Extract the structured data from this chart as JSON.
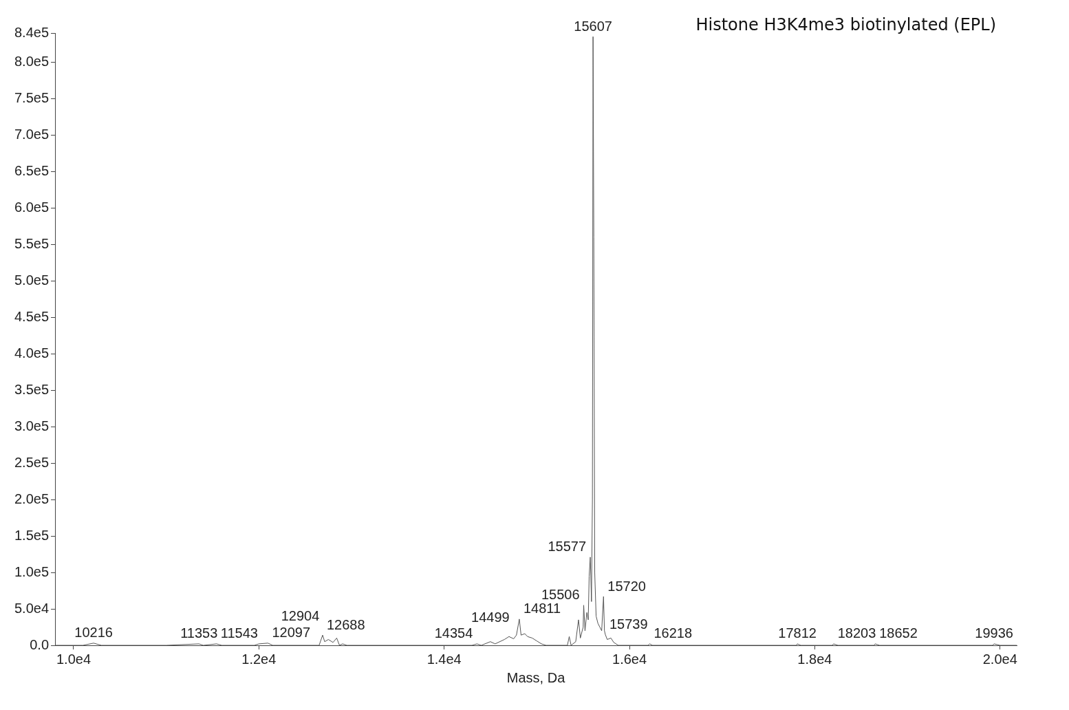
{
  "chart_data": {
    "type": "line",
    "title": "Histone H3K4me3 biotinylated (EPL)",
    "xlabel": "Mass, Da",
    "xlim": [
      9800,
      20180
    ],
    "ylim": [
      0,
      840000
    ],
    "xticks": [
      {
        "value": 10000,
        "label": "1.0e4"
      },
      {
        "value": 12000,
        "label": "1.2e4"
      },
      {
        "value": 14000,
        "label": "1.4e4"
      },
      {
        "value": 16000,
        "label": "1.6e4"
      },
      {
        "value": 18000,
        "label": "1.8e4"
      },
      {
        "value": 20000,
        "label": "2.0e4"
      }
    ],
    "yticks": [
      {
        "value": 0,
        "label": "0.0"
      },
      {
        "value": 50000,
        "label": "5.0e4"
      },
      {
        "value": 100000,
        "label": "1.0e5"
      },
      {
        "value": 150000,
        "label": "1.5e5"
      },
      {
        "value": 200000,
        "label": "2.0e5"
      },
      {
        "value": 250000,
        "label": "2.5e5"
      },
      {
        "value": 300000,
        "label": "3.0e5"
      },
      {
        "value": 350000,
        "label": "3.5e5"
      },
      {
        "value": 400000,
        "label": "4.0e5"
      },
      {
        "value": 450000,
        "label": "4.5e5"
      },
      {
        "value": 500000,
        "label": "5.0e5"
      },
      {
        "value": 550000,
        "label": "5.5e5"
      },
      {
        "value": 600000,
        "label": "6.0e5"
      },
      {
        "value": 650000,
        "label": "6.5e5"
      },
      {
        "value": 700000,
        "label": "7.0e5"
      },
      {
        "value": 750000,
        "label": "7.5e5"
      },
      {
        "value": 800000,
        "label": "8.0e5"
      },
      {
        "value": 840000,
        "label": "8.4e5"
      }
    ],
    "grid": false,
    "legend": false,
    "marker": "none",
    "line_style": "solid",
    "series": [
      {
        "color": "#555555",
        "x": [
          9800,
          10100,
          10216,
          10300,
          11000,
          11353,
          11400,
          11543,
          11600,
          11950,
          12000,
          12097,
          12150,
          12650,
          12688,
          12710,
          12750,
          12800,
          12840,
          12870,
          12904,
          12950,
          14300,
          14354,
          14400,
          14499,
          14550,
          14650,
          14700,
          14750,
          14780,
          14811,
          14830,
          14870,
          14900,
          14950,
          15000,
          15050,
          15100,
          15330,
          15350,
          15370,
          15420,
          15450,
          15470,
          15500,
          15506,
          15520,
          15540,
          15555,
          15565,
          15577,
          15590,
          15600,
          15607,
          15615,
          15625,
          15640,
          15660,
          15680,
          15700,
          15720,
          15730,
          15739,
          15760,
          15800,
          15830,
          15880,
          16200,
          16218,
          16250,
          17800,
          17812,
          17850,
          18190,
          18203,
          18250,
          18640,
          18652,
          18700,
          19920,
          19936,
          20000,
          20180
        ],
        "values": [
          0,
          0,
          3000,
          0,
          0,
          2000,
          0,
          2000,
          0,
          0,
          2000,
          3000,
          0,
          0,
          14000,
          5000,
          8000,
          4000,
          10000,
          0,
          2000,
          0,
          0,
          2000,
          0,
          5000,
          2000,
          8000,
          12000,
          9000,
          14000,
          36000,
          14000,
          16000,
          12000,
          10000,
          6000,
          2000,
          0,
          0,
          12000,
          0,
          5000,
          35000,
          10000,
          25000,
          55000,
          20000,
          45000,
          35000,
          95000,
          121000,
          60000,
          200000,
          835000,
          560000,
          100000,
          40000,
          30000,
          25000,
          20000,
          67000,
          20000,
          15000,
          8000,
          10000,
          4000,
          0,
          0,
          2000,
          0,
          0,
          2000,
          0,
          0,
          2000,
          0,
          0,
          2000,
          0,
          0,
          2000,
          0,
          0
        ]
      }
    ],
    "annotations": [
      {
        "text": "10216",
        "x": 10216,
        "y": 3000
      },
      {
        "text": "11353",
        "x": 11353,
        "y": 2000
      },
      {
        "text": "11543",
        "x": 11543,
        "y": 2000
      },
      {
        "text": "12097",
        "x": 12097,
        "y": 3000
      },
      {
        "text": "12688",
        "x": 12688,
        "y": 14000
      },
      {
        "text": "12904",
        "x": 12904,
        "y": 2000
      },
      {
        "text": "14354",
        "x": 14354,
        "y": 2000
      },
      {
        "text": "14499",
        "x": 14499,
        "y": 5000
      },
      {
        "text": "14811",
        "x": 14811,
        "y": 36000
      },
      {
        "text": "15506",
        "x": 15506,
        "y": 55000
      },
      {
        "text": "15577",
        "x": 15577,
        "y": 121000
      },
      {
        "text": "15607",
        "x": 15607,
        "y": 835000
      },
      {
        "text": "15720",
        "x": 15720,
        "y": 67000
      },
      {
        "text": "15739",
        "x": 15739,
        "y": 15000
      },
      {
        "text": "16218",
        "x": 16218,
        "y": 2000
      },
      {
        "text": "17812",
        "x": 17812,
        "y": 2000
      },
      {
        "text": "18203",
        "x": 18203,
        "y": 2000
      },
      {
        "text": "18652",
        "x": 18652,
        "y": 2000
      },
      {
        "text": "19936",
        "x": 19936,
        "y": 2000
      }
    ]
  }
}
